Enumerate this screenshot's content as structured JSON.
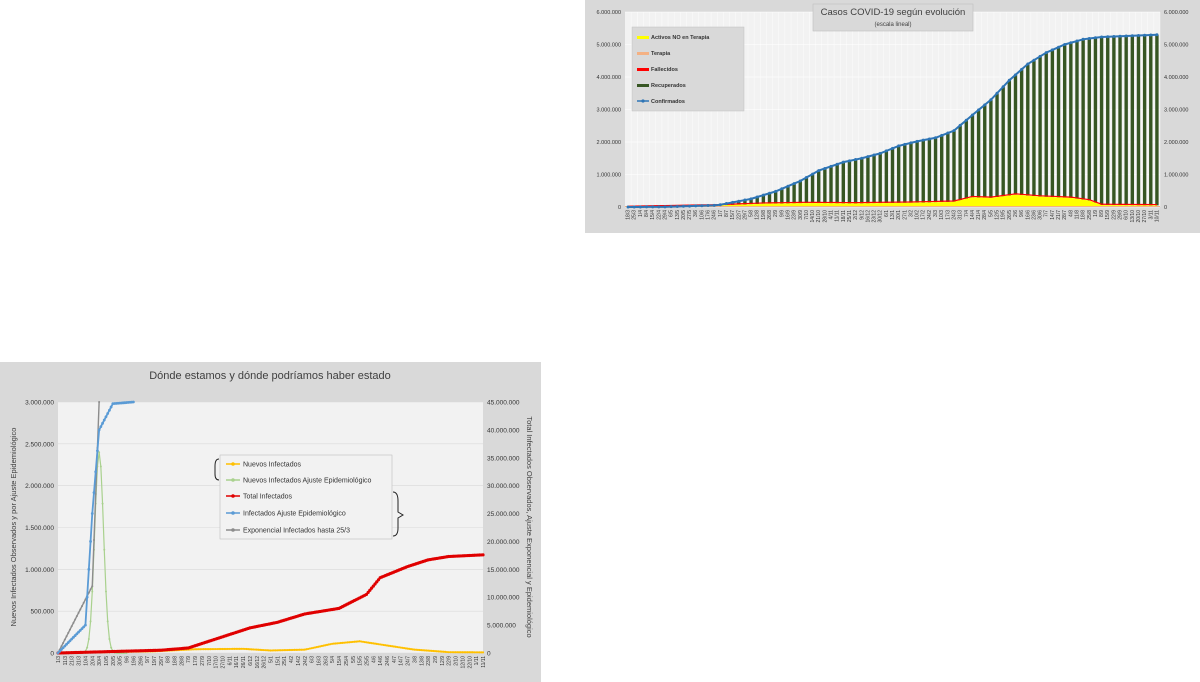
{
  "chart_data": [
    {
      "type": "area",
      "title": "Casos COVID-19 según evolución",
      "subtitle": "(escala lineal)",
      "ylim": [
        0,
        6000000
      ],
      "y_ticks": [
        "0",
        "1.000.000",
        "2.000.000",
        "3.000.000",
        "4.000.000",
        "5.000.000",
        "6.000.000"
      ],
      "y2_ticks": [
        "0",
        "1.000.000",
        "2.000.000",
        "3.000.000",
        "4.000.000",
        "5.000.000",
        "6.000.000"
      ],
      "x_tick_labels": [
        "18/3",
        "25/3",
        "1/4",
        "8/4",
        "15/4",
        "22/4",
        "29/4",
        "6/5",
        "13/5",
        "20/5",
        "27/5",
        "3/6",
        "10/6",
        "17/6",
        "24/6",
        "1/7",
        "8/7",
        "15/7",
        "22/7",
        "29/7",
        "5/8",
        "12/8",
        "19/8",
        "26/8",
        "2/9",
        "9/9",
        "16/9",
        "23/9",
        "30/9",
        "7/10",
        "14/10",
        "21/10",
        "28/10",
        "4/11",
        "11/11",
        "18/11",
        "25/11",
        "2/12",
        "9/12",
        "16/12",
        "23/12",
        "30/12",
        "6/1",
        "13/1",
        "20/1",
        "27/1",
        "3/2",
        "10/2",
        "17/2",
        "24/2",
        "3/3",
        "10/3",
        "17/3",
        "24/3",
        "31/3",
        "7/4",
        "14/4",
        "21/4",
        "28/4",
        "5/5",
        "12/5",
        "19/5",
        "26/5",
        "2/6",
        "9/6",
        "16/6",
        "23/6",
        "30/6",
        "7/7",
        "14/7",
        "21/7",
        "28/7",
        "4/8",
        "11/8",
        "18/8",
        "25/8",
        "1/9",
        "8/9",
        "15/9",
        "22/9",
        "29/9",
        "6/10",
        "13/10",
        "20/10",
        "27/10",
        "3/11",
        "10/11"
      ],
      "legend_position": "top-left",
      "grid": true,
      "series": [
        {
          "name": "Activos NO en Terapia",
          "color": "#ffff00",
          "kind": "area"
        },
        {
          "name": "Terapia",
          "color": "#f4b183",
          "kind": "area"
        },
        {
          "name": "Fallecidos",
          "color": "#ff0000",
          "kind": "area"
        },
        {
          "name": "Recuperados",
          "color": "#375623",
          "kind": "bars"
        },
        {
          "name": "Confirmados",
          "color": "#2e75b6",
          "kind": "line-markers"
        }
      ],
      "confirmados_keypoints": [
        {
          "x": "18/3",
          "y": 0
        },
        {
          "x": "29/4",
          "y": 5000
        },
        {
          "x": "24/6",
          "y": 50000
        },
        {
          "x": "1/7",
          "y": 70000
        },
        {
          "x": "5/8",
          "y": 250000
        },
        {
          "x": "2/9",
          "y": 480000
        },
        {
          "x": "30/9",
          "y": 800000
        },
        {
          "x": "21/10",
          "y": 1120000
        },
        {
          "x": "18/11",
          "y": 1380000
        },
        {
          "x": "9/12",
          "y": 1500000
        },
        {
          "x": "30/12",
          "y": 1650000
        },
        {
          "x": "20/1",
          "y": 1880000
        },
        {
          "x": "10/2",
          "y": 2020000
        },
        {
          "x": "3/3",
          "y": 2130000
        },
        {
          "x": "24/3",
          "y": 2350000
        },
        {
          "x": "14/4",
          "y": 2830000
        },
        {
          "x": "5/5",
          "y": 3300000
        },
        {
          "x": "26/5",
          "y": 3900000
        },
        {
          "x": "16/6",
          "y": 4400000
        },
        {
          "x": "7/7",
          "y": 4750000
        },
        {
          "x": "28/7",
          "y": 5000000
        },
        {
          "x": "18/8",
          "y": 5160000
        },
        {
          "x": "8/9",
          "y": 5230000
        },
        {
          "x": "6/10",
          "y": 5260000
        },
        {
          "x": "10/11",
          "y": 5300000
        }
      ],
      "activos_keypoints": [
        {
          "x": "18/3",
          "y": 0
        },
        {
          "x": "1/7",
          "y": 50000
        },
        {
          "x": "19/8",
          "y": 100000
        },
        {
          "x": "7/10",
          "y": 120000
        },
        {
          "x": "2/12",
          "y": 110000
        },
        {
          "x": "3/2",
          "y": 130000
        },
        {
          "x": "24/3",
          "y": 160000
        },
        {
          "x": "14/4",
          "y": 300000
        },
        {
          "x": "5/5",
          "y": 280000
        },
        {
          "x": "2/6",
          "y": 380000
        },
        {
          "x": "30/6",
          "y": 320000
        },
        {
          "x": "4/8",
          "y": 280000
        },
        {
          "x": "25/8",
          "y": 200000
        },
        {
          "x": "8/9",
          "y": 60000
        },
        {
          "x": "10/11",
          "y": 50000
        }
      ]
    },
    {
      "type": "line",
      "title": "Dónde estamos y dónde podríamos haber estado",
      "ylabel": "Nuevos Infectados Observados y por Ajuste Epidemiológico",
      "y2label": "Total Infectados Observados, Ajuste Exponencial y Epidemiológico",
      "ylim": [
        0,
        3000000
      ],
      "y2lim": [
        0,
        45000000
      ],
      "y_ticks": [
        "0",
        "500.000",
        "1.000.000",
        "1.500.000",
        "2.000.000",
        "2.500.000",
        "3.000.000"
      ],
      "y2_ticks": [
        "0",
        "5.000.000",
        "10.000.000",
        "15.000.000",
        "20.000.000",
        "25.000.000",
        "30.000.000",
        "35.000.000",
        "40.000.000",
        "45.000.000"
      ],
      "x_tick_labels": [
        "1/3",
        "11/3",
        "21/3",
        "31/3",
        "10/4",
        "20/4",
        "30/4",
        "10/5",
        "20/5",
        "30/5",
        "9/6",
        "19/6",
        "29/6",
        "9/7",
        "19/7",
        "29/7",
        "8/8",
        "18/8",
        "28/8",
        "7/9",
        "17/9",
        "27/9",
        "7/10",
        "17/10",
        "27/10",
        "6/11",
        "16/11",
        "26/11",
        "6/12",
        "16/12",
        "26/12",
        "5/1",
        "15/1",
        "25/1",
        "4/2",
        "14/2",
        "24/2",
        "6/3",
        "16/3",
        "26/3",
        "5/4",
        "15/4",
        "25/4",
        "5/5",
        "15/5",
        "25/5",
        "4/6",
        "14/6",
        "24/6",
        "4/7",
        "14/7",
        "24/7",
        "3/8",
        "13/8",
        "23/8",
        "2/9",
        "12/9",
        "22/9",
        "2/10",
        "12/10",
        "22/10",
        "1/11",
        "11/11"
      ],
      "legend_position": "center",
      "series": [
        {
          "name": "Nuevos Infectados",
          "color": "#ffc000",
          "axis": "left"
        },
        {
          "name": "Nuevos Infectados Ajuste Epidemiológico",
          "color": "#a9d18e",
          "axis": "left"
        },
        {
          "name": "Total Infectados",
          "color": "#e00000",
          "axis": "right"
        },
        {
          "name": "Infectados Ajuste Epidemiológico",
          "color": "#5b9bd5",
          "axis": "right"
        },
        {
          "name": "Exponencial Infectados hasta 25/3",
          "color": "#8c8c8c",
          "axis": "right"
        }
      ],
      "total_infectados_keypoints": [
        {
          "x": "1/3",
          "y": 0
        },
        {
          "x": "29/7",
          "y": 500000
        },
        {
          "x": "7/9",
          "y": 900000
        },
        {
          "x": "17/10",
          "y": 2500000
        },
        {
          "x": "6/12",
          "y": 4500000
        },
        {
          "x": "15/1",
          "y": 5500000
        },
        {
          "x": "24/2",
          "y": 7000000
        },
        {
          "x": "15/4",
          "y": 8000000
        },
        {
          "x": "25/5",
          "y": 10500000
        },
        {
          "x": "14/6",
          "y": 13500000
        },
        {
          "x": "24/7",
          "y": 15500000
        },
        {
          "x": "23/8",
          "y": 16700000
        },
        {
          "x": "22/9",
          "y": 17300000
        },
        {
          "x": "11/11",
          "y": 17600000
        }
      ],
      "nuevos_infectados_keypoints": [
        {
          "x": "1/3",
          "y": 0
        },
        {
          "x": "19/7",
          "y": 20000
        },
        {
          "x": "17/9",
          "y": 45000
        },
        {
          "x": "26/11",
          "y": 50000
        },
        {
          "x": "5/1",
          "y": 30000
        },
        {
          "x": "24/2",
          "y": 40000
        },
        {
          "x": "5/4",
          "y": 110000
        },
        {
          "x": "15/5",
          "y": 140000
        },
        {
          "x": "24/6",
          "y": 90000
        },
        {
          "x": "3/8",
          "y": 40000
        },
        {
          "x": "22/9",
          "y": 10000
        },
        {
          "x": "11/11",
          "y": 8000
        }
      ],
      "ajuste_epidemiologico_keypoints": [
        {
          "x": "1/3",
          "y": 0
        },
        {
          "x": "10/4",
          "y": 5000000
        },
        {
          "x": "20/4",
          "y": 25000000
        },
        {
          "x": "30/4",
          "y": 40000000
        },
        {
          "x": "20/5",
          "y": 44700000
        },
        {
          "x": "19/6",
          "y": 45000000
        }
      ],
      "exponencial_keypoints": [
        {
          "x": "1/3",
          "y": 0
        },
        {
          "x": "20/4",
          "y": 12000000
        },
        {
          "x": "30/4",
          "y": 45000000
        }
      ],
      "nuevos_ajuste_peak": {
        "x": "30/4",
        "y": 2400000
      }
    }
  ]
}
